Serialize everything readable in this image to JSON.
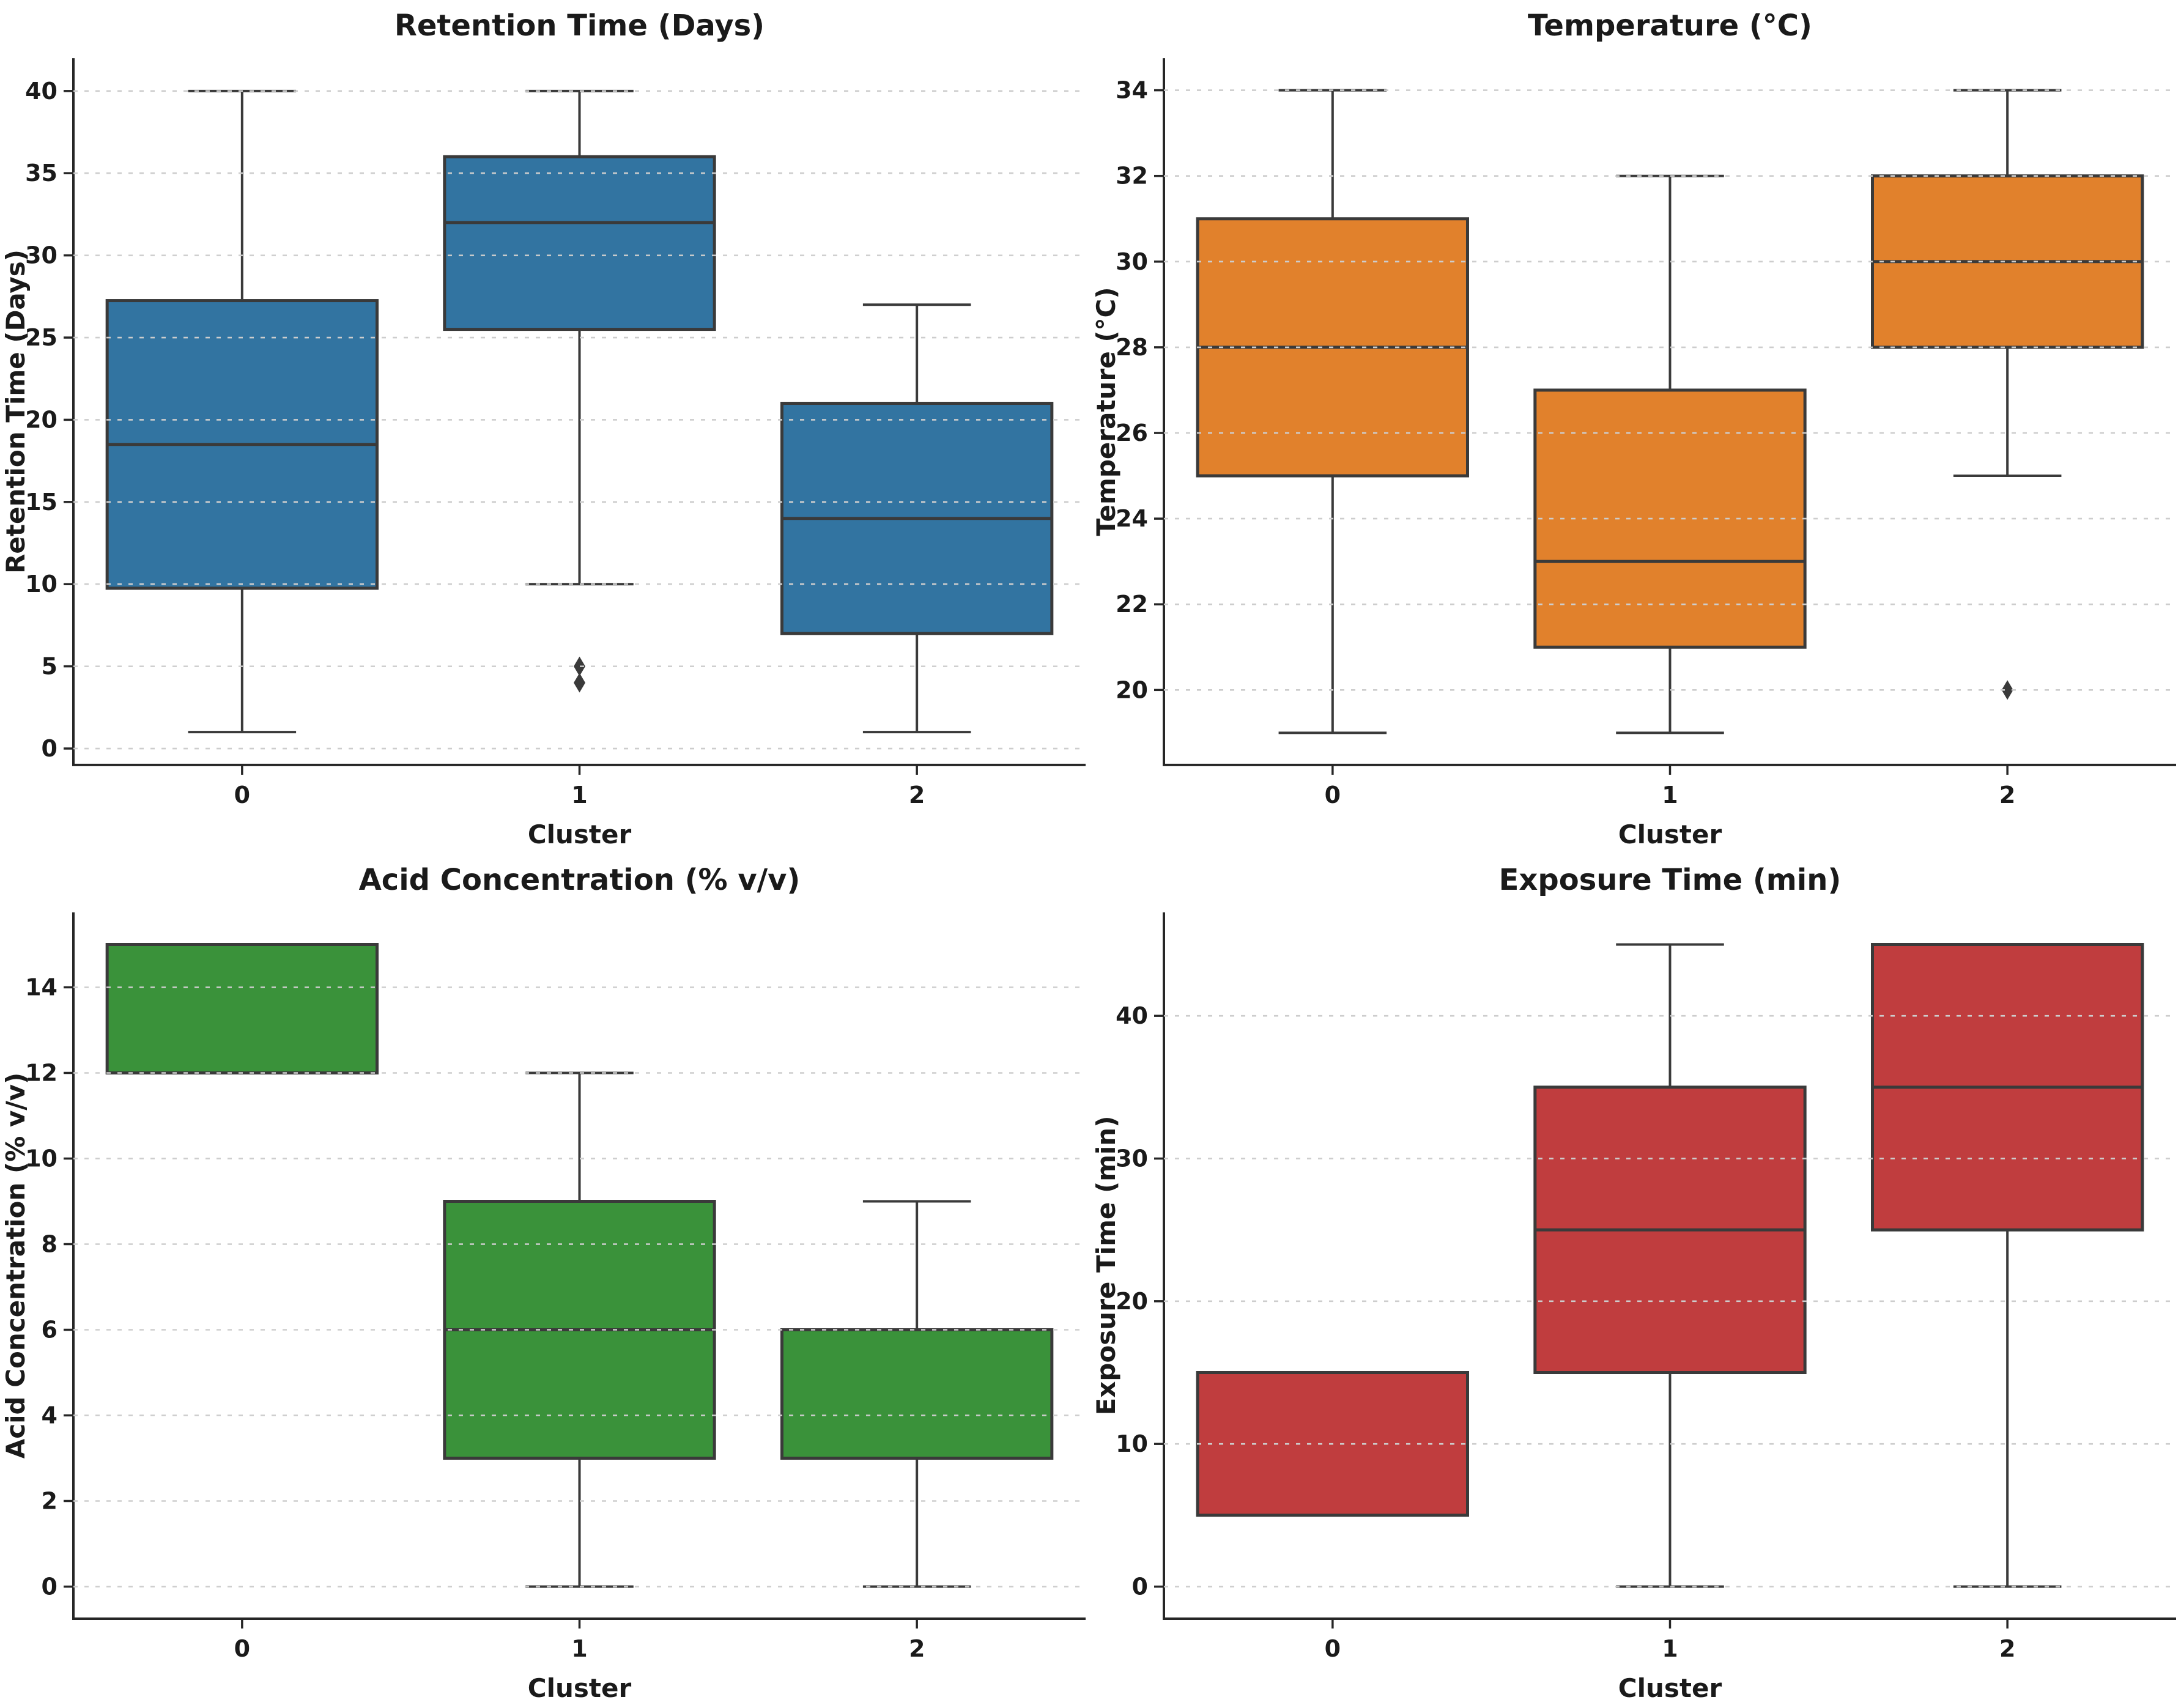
{
  "figure": {
    "background": "#ffffff",
    "grid_color": "#cdcdcd",
    "spine_color": "#262626",
    "text_color": "#1a1a1a",
    "box_edge_color": "#3a3a3a",
    "outlier_color": "#3a3a3a"
  },
  "chart_data": [
    {
      "type": "box",
      "title": "Retention Time (Days)",
      "xlabel": "Cluster",
      "ylabel": "Retention Time (Days)",
      "categories": [
        "0",
        "1",
        "2"
      ],
      "box_color": "#3274a1",
      "grid": "horizontal-dashed",
      "legend": "none",
      "ylim": [
        -1.0,
        42.0
      ],
      "yticks": [
        0,
        5,
        10,
        15,
        20,
        25,
        30,
        35,
        40
      ],
      "boxes": [
        {
          "category": "0",
          "whisker_low": 1,
          "q1": 9.75,
          "median": 18.5,
          "q3": 27.25,
          "whisker_high": 40,
          "outliers": []
        },
        {
          "category": "1",
          "whisker_low": 10,
          "q1": 25.5,
          "median": 32,
          "q3": 36,
          "whisker_high": 40,
          "outliers": [
            5,
            4
          ]
        },
        {
          "category": "2",
          "whisker_low": 1,
          "q1": 7,
          "median": 14,
          "q3": 21,
          "whisker_high": 27,
          "outliers": []
        }
      ]
    },
    {
      "type": "box",
      "title": "Temperature (°C)",
      "xlabel": "Cluster",
      "ylabel": "Temperature (°C)",
      "categories": [
        "0",
        "1",
        "2"
      ],
      "box_color": "#e1812c",
      "grid": "horizontal-dashed",
      "legend": "none",
      "ylim": [
        18.25,
        34.75
      ],
      "yticks": [
        20,
        22,
        24,
        26,
        28,
        30,
        32,
        34
      ],
      "boxes": [
        {
          "category": "0",
          "whisker_low": 19,
          "q1": 25,
          "median": 28,
          "q3": 31,
          "whisker_high": 34,
          "outliers": []
        },
        {
          "category": "1",
          "whisker_low": 19,
          "q1": 21,
          "median": 23,
          "q3": 27,
          "whisker_high": 32,
          "outliers": []
        },
        {
          "category": "2",
          "whisker_low": 25,
          "q1": 28,
          "median": 30,
          "q3": 32,
          "whisker_high": 34,
          "outliers": [
            20
          ]
        }
      ]
    },
    {
      "type": "box",
      "title": "Acid Concentration (% v/v)",
      "xlabel": "Cluster",
      "ylabel": "Acid Concentration (% v/v)",
      "categories": [
        "0",
        "1",
        "2"
      ],
      "box_color": "#3a923a",
      "grid": "horizontal-dashed",
      "legend": "none",
      "ylim": [
        -0.75,
        15.75
      ],
      "yticks": [
        0,
        2,
        4,
        6,
        8,
        10,
        12,
        14
      ],
      "boxes": [
        {
          "category": "0",
          "whisker_low": 12,
          "q1": 12,
          "median": null,
          "q3": 15,
          "whisker_high": 15,
          "outliers": []
        },
        {
          "category": "1",
          "whisker_low": 0,
          "q1": 3,
          "median": 6,
          "q3": 9,
          "whisker_high": 12,
          "outliers": []
        },
        {
          "category": "2",
          "whisker_low": 0,
          "q1": 3,
          "median": null,
          "q3": 6,
          "whisker_high": 9,
          "outliers": []
        }
      ]
    },
    {
      "type": "box",
      "title": "Exposure Time (min)",
      "xlabel": "Cluster",
      "ylabel": "Exposure Time (min)",
      "categories": [
        "0",
        "1",
        "2"
      ],
      "box_color": "#c03d3e",
      "grid": "horizontal-dashed",
      "legend": "none",
      "ylim": [
        -2.25,
        47.25
      ],
      "yticks": [
        0,
        10,
        20,
        30,
        40
      ],
      "boxes": [
        {
          "category": "0",
          "whisker_low": 5,
          "q1": 5,
          "median": null,
          "q3": 15,
          "whisker_high": 15,
          "outliers": []
        },
        {
          "category": "1",
          "whisker_low": 0,
          "q1": 15,
          "median": 25,
          "q3": 35,
          "whisker_high": 45,
          "outliers": []
        },
        {
          "category": "2",
          "whisker_low": 0,
          "q1": 25,
          "median": 35,
          "q3": 45,
          "whisker_high": 45,
          "outliers": []
        }
      ]
    }
  ]
}
